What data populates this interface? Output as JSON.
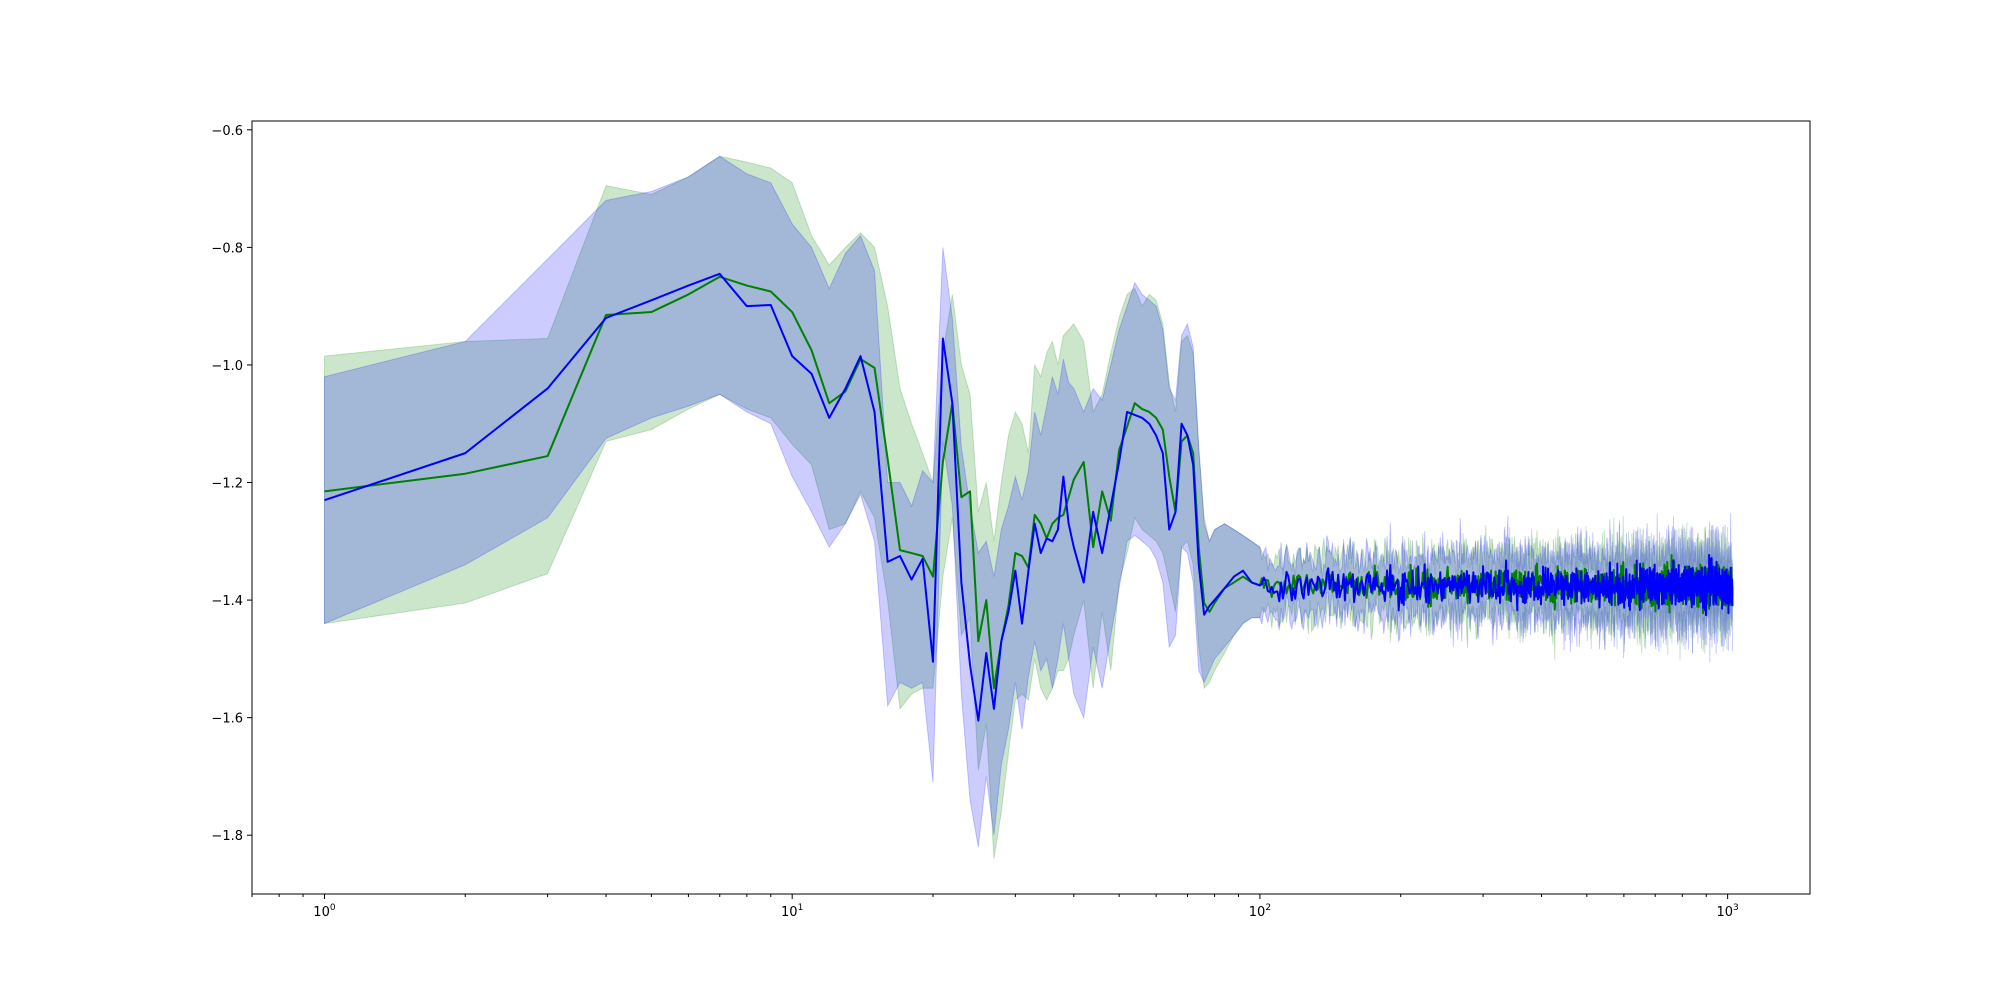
{
  "chart_data": {
    "type": "line",
    "title": "",
    "xlabel": "",
    "ylabel": "",
    "x_scale": "log",
    "xlim": [
      0.7,
      1500
    ],
    "ylim": [
      -1.9,
      -0.585
    ],
    "grid": false,
    "x_ticks": [
      {
        "value": 1,
        "base": "10",
        "exp": "0"
      },
      {
        "value": 10,
        "base": "10",
        "exp": "1"
      },
      {
        "value": 100,
        "base": "10",
        "exp": "2"
      },
      {
        "value": 1000,
        "base": "10",
        "exp": "3"
      }
    ],
    "y_ticks": [
      {
        "value": -0.6,
        "label": "−0.6"
      },
      {
        "value": -0.8,
        "label": "−0.8"
      },
      {
        "value": -1.0,
        "label": "−1.0"
      },
      {
        "value": -1.2,
        "label": "−1.2"
      },
      {
        "value": -1.4,
        "label": "−1.4"
      },
      {
        "value": -1.6,
        "label": "−1.6"
      },
      {
        "value": -1.8,
        "label": "−1.8"
      }
    ],
    "tail_region": {
      "x_start": 100,
      "x_end": 1024,
      "center": -1.375,
      "line_noise": 0.012,
      "band_halfwidth": 0.032,
      "band_noise": 0.018
    },
    "series": [
      {
        "color": "#008000",
        "band_color": "#008000",
        "band_opacity": 0.2,
        "x": [
          1,
          2,
          3,
          4,
          5,
          6,
          7,
          8,
          9,
          10,
          11,
          12,
          13,
          14,
          15,
          16,
          17,
          18,
          19,
          20,
          21,
          22,
          23,
          24,
          25,
          26,
          27,
          28,
          29,
          30,
          31,
          32,
          33,
          34,
          35,
          36,
          37,
          38,
          39,
          40,
          42,
          44,
          46,
          48,
          50,
          52,
          54,
          56,
          58,
          60,
          62,
          64,
          66,
          68,
          70,
          72,
          74,
          76,
          78,
          80,
          84,
          88,
          92,
          96,
          100
        ],
        "y": [
          -1.215,
          -1.185,
          -1.155,
          -0.915,
          -0.91,
          -0.88,
          -0.85,
          -0.865,
          -0.875,
          -0.91,
          -0.975,
          -1.065,
          -1.045,
          -0.99,
          -1.005,
          -1.16,
          -1.315,
          -1.32,
          -1.325,
          -1.36,
          -1.165,
          -1.065,
          -1.225,
          -1.215,
          -1.47,
          -1.4,
          -1.55,
          -1.47,
          -1.41,
          -1.32,
          -1.325,
          -1.345,
          -1.255,
          -1.27,
          -1.295,
          -1.27,
          -1.26,
          -1.255,
          -1.225,
          -1.195,
          -1.165,
          -1.31,
          -1.215,
          -1.265,
          -1.145,
          -1.105,
          -1.065,
          -1.075,
          -1.08,
          -1.09,
          -1.11,
          -1.19,
          -1.25,
          -1.13,
          -1.12,
          -1.15,
          -1.31,
          -1.405,
          -1.42,
          -1.405,
          -1.38,
          -1.37,
          -1.36,
          -1.37,
          -1.375
        ],
        "upper": [
          -0.985,
          -0.96,
          -0.955,
          -0.695,
          -0.71,
          -0.68,
          -0.645,
          -0.655,
          -0.665,
          -0.69,
          -0.78,
          -0.83,
          -0.8,
          -0.775,
          -0.8,
          -0.9,
          -1.04,
          -1.1,
          -1.15,
          -1.2,
          -0.98,
          -0.88,
          -1.0,
          -1.05,
          -1.25,
          -1.2,
          -1.3,
          -1.2,
          -1.12,
          -1.08,
          -1.1,
          -1.15,
          -1.0,
          -1.02,
          -0.98,
          -0.96,
          -1.0,
          -0.95,
          -0.94,
          -0.93,
          -0.96,
          -1.08,
          -1.05,
          -0.98,
          -0.92,
          -0.88,
          -0.87,
          -0.9,
          -0.88,
          -0.89,
          -0.93,
          -1.03,
          -1.08,
          -0.96,
          -0.95,
          -0.98,
          -1.14,
          -1.26,
          -1.3,
          -1.28,
          -1.27,
          -1.28,
          -1.29,
          -1.3,
          -1.31
        ],
        "lower": [
          -1.44,
          -1.405,
          -1.355,
          -1.13,
          -1.11,
          -1.075,
          -1.05,
          -1.075,
          -1.09,
          -1.135,
          -1.17,
          -1.28,
          -1.27,
          -1.215,
          -1.26,
          -1.4,
          -1.585,
          -1.56,
          -1.55,
          -1.55,
          -1.36,
          -1.26,
          -1.46,
          -1.43,
          -1.69,
          -1.61,
          -1.84,
          -1.76,
          -1.66,
          -1.57,
          -1.56,
          -1.57,
          -1.5,
          -1.55,
          -1.57,
          -1.55,
          -1.52,
          -1.52,
          -1.5,
          -1.46,
          -1.4,
          -1.55,
          -1.42,
          -1.52,
          -1.37,
          -1.32,
          -1.26,
          -1.28,
          -1.29,
          -1.3,
          -1.32,
          -1.37,
          -1.42,
          -1.31,
          -1.3,
          -1.34,
          -1.48,
          -1.55,
          -1.54,
          -1.52,
          -1.49,
          -1.46,
          -1.44,
          -1.43,
          -1.43
        ]
      },
      {
        "color": "#0000ff",
        "band_color": "#0000ff",
        "band_opacity": 0.2,
        "x": [
          1,
          2,
          3,
          4,
          5,
          6,
          7,
          8,
          9,
          10,
          11,
          12,
          13,
          14,
          15,
          16,
          17,
          18,
          19,
          20,
          21,
          22,
          23,
          24,
          25,
          26,
          27,
          28,
          29,
          30,
          31,
          32,
          33,
          34,
          35,
          36,
          37,
          38,
          39,
          40,
          42,
          44,
          46,
          48,
          50,
          52,
          54,
          56,
          58,
          60,
          62,
          64,
          66,
          68,
          70,
          72,
          74,
          76,
          78,
          80,
          84,
          88,
          92,
          96,
          100
        ],
        "y": [
          -1.23,
          -1.15,
          -1.04,
          -0.92,
          -0.89,
          -0.865,
          -0.845,
          -0.9,
          -0.898,
          -0.985,
          -1.015,
          -1.09,
          -1.04,
          -0.985,
          -1.08,
          -1.335,
          -1.325,
          -1.365,
          -1.33,
          -1.505,
          -0.955,
          -1.065,
          -1.37,
          -1.51,
          -1.605,
          -1.49,
          -1.585,
          -1.47,
          -1.42,
          -1.35,
          -1.44,
          -1.35,
          -1.27,
          -1.32,
          -1.295,
          -1.3,
          -1.28,
          -1.19,
          -1.27,
          -1.31,
          -1.37,
          -1.25,
          -1.32,
          -1.24,
          -1.165,
          -1.08,
          -1.085,
          -1.09,
          -1.1,
          -1.12,
          -1.15,
          -1.28,
          -1.25,
          -1.1,
          -1.12,
          -1.17,
          -1.34,
          -1.425,
          -1.41,
          -1.4,
          -1.38,
          -1.36,
          -1.35,
          -1.37,
          -1.375
        ],
        "upper": [
          -1.02,
          -0.96,
          -0.82,
          -0.72,
          -0.705,
          -0.68,
          -0.645,
          -0.675,
          -0.69,
          -0.76,
          -0.8,
          -0.87,
          -0.81,
          -0.78,
          -0.84,
          -1.2,
          -1.2,
          -1.24,
          -1.18,
          -1.2,
          -0.8,
          -0.92,
          -1.14,
          -1.24,
          -1.32,
          -1.3,
          -1.36,
          -1.28,
          -1.24,
          -1.19,
          -1.23,
          -1.18,
          -1.08,
          -1.12,
          -1.07,
          -1.02,
          -1.05,
          -0.99,
          -1.03,
          -1.04,
          -1.08,
          -1.04,
          -1.06,
          -1.0,
          -0.94,
          -0.9,
          -0.86,
          -0.88,
          -0.89,
          -0.9,
          -0.94,
          -1.04,
          -1.06,
          -0.95,
          -0.93,
          -0.97,
          -1.14,
          -1.27,
          -1.3,
          -1.28,
          -1.27,
          -1.28,
          -1.29,
          -1.3,
          -1.31
        ],
        "lower": [
          -1.44,
          -1.34,
          -1.26,
          -1.125,
          -1.09,
          -1.07,
          -1.05,
          -1.08,
          -1.1,
          -1.19,
          -1.25,
          -1.31,
          -1.27,
          -1.22,
          -1.3,
          -1.58,
          -1.54,
          -1.55,
          -1.54,
          -1.71,
          -1.13,
          -1.24,
          -1.56,
          -1.74,
          -1.82,
          -1.7,
          -1.8,
          -1.68,
          -1.62,
          -1.54,
          -1.62,
          -1.53,
          -1.47,
          -1.52,
          -1.5,
          -1.55,
          -1.5,
          -1.44,
          -1.5,
          -1.56,
          -1.6,
          -1.48,
          -1.55,
          -1.46,
          -1.38,
          -1.3,
          -1.29,
          -1.3,
          -1.31,
          -1.33,
          -1.37,
          -1.48,
          -1.46,
          -1.31,
          -1.32,
          -1.37,
          -1.52,
          -1.54,
          -1.52,
          -1.5,
          -1.48,
          -1.46,
          -1.44,
          -1.43,
          -1.43
        ]
      }
    ]
  }
}
